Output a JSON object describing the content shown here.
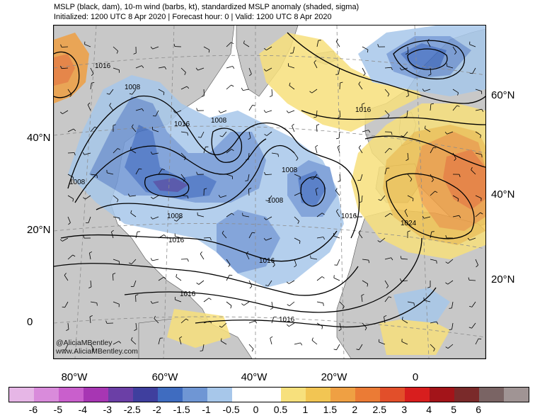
{
  "header": {
    "title": "MSLP (black, dam), 10-m wind (barbs, kt), standardized MSLP anomaly (shaded, sigma)",
    "subtitle": "Initialized: 1200 UTC 8 Apr 2020 | Forecast hour: 0 | Valid: 1200 UTC 8 Apr 2020"
  },
  "credit": {
    "line1": "@AliciaMBentley",
    "line2": "www.AliciaMBentley.com"
  },
  "left_latitudes": [
    "40°N",
    "20°N",
    "0"
  ],
  "right_latitudes": [
    "60°N",
    "40°N",
    "20°N"
  ],
  "longitudes": [
    "80°W",
    "60°W",
    "40°W",
    "20°W",
    "0"
  ],
  "contour_labels": [
    "1016",
    "1008",
    "1016",
    "1008",
    "1008",
    "1008",
    "1008",
    "1008",
    "1016",
    "1016",
    "1016",
    "1016",
    "1016",
    "1016",
    "1024"
  ],
  "colorbar": {
    "colors": [
      "#e6b6e6",
      "#d98bdb",
      "#c95fcc",
      "#a736b3",
      "#6b3fa6",
      "#3f3f9e",
      "#3f6cc0",
      "#6f96d4",
      "#a7c7ea",
      "#ffffff",
      "#ffffff",
      "#f7e07c",
      "#f2c553",
      "#efa043",
      "#eb7b35",
      "#e24f2a",
      "#d81e1e",
      "#a31419",
      "#7a2a2a",
      "#7a6464",
      "#a09494"
    ],
    "labels": [
      "-6",
      "-5",
      "-4",
      "-3",
      "-2.5",
      "-2",
      "-1.5",
      "-1",
      "-0.5",
      "0",
      "0.5",
      "1",
      "1.5",
      "2",
      "2.5",
      "3",
      "4",
      "5",
      "6"
    ]
  },
  "palette": {
    "land": "#c8c8c8",
    "ocean": "#ffffff",
    "contour": "#000000",
    "grid": "#8c8c8c"
  }
}
